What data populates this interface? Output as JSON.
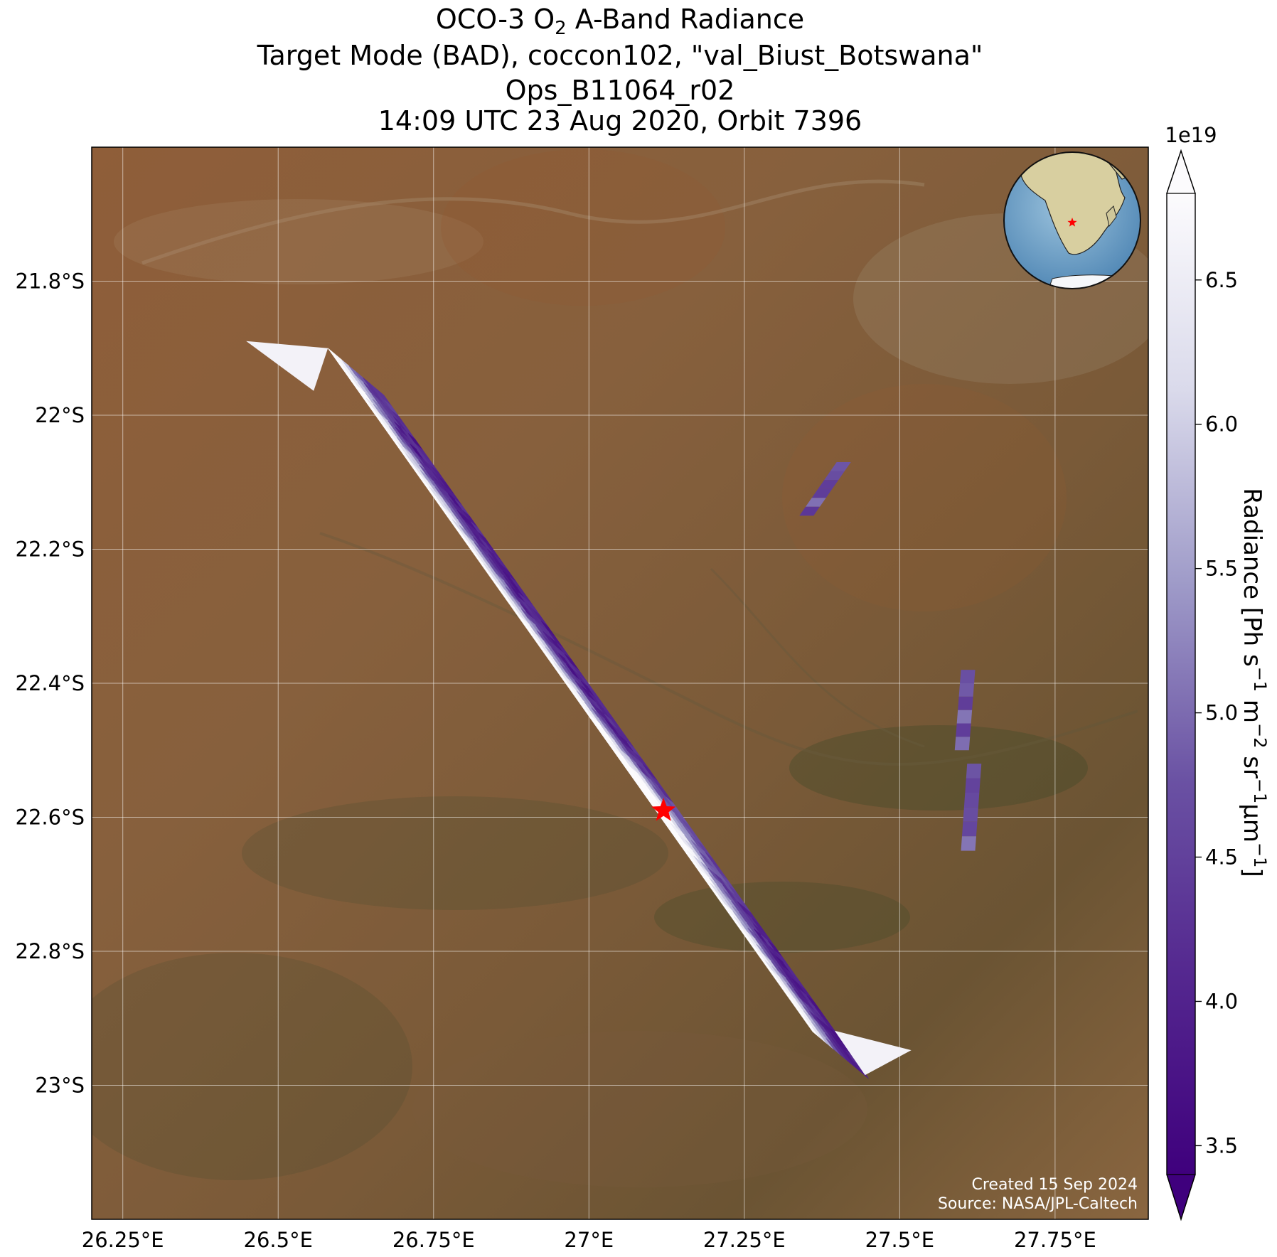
{
  "title": {
    "line1_prefix": "OCO-3 O",
    "line1_sub": "2",
    "line1_suffix": " A-Band Radiance",
    "line2": "Target Mode (BAD), coccon102, \"val_Biust_Botswana\"",
    "line3": "Ops_B11064_r02",
    "line4": "14:09 UTC 23 Aug 2020, Orbit 7396"
  },
  "map": {
    "lon_range": [
      26.2,
      27.9
    ],
    "lat_range": [
      -23.2,
      -21.6
    ],
    "lon_ticks": [
      26.25,
      26.5,
      26.75,
      27.0,
      27.25,
      27.5,
      27.75
    ],
    "lon_tick_labels": [
      "26.25°E",
      "26.5°E",
      "26.75°E",
      "27°E",
      "27.25°E",
      "27.5°E",
      "27.75°E"
    ],
    "lat_ticks": [
      -21.8,
      -22.0,
      -22.2,
      -22.4,
      -22.6,
      -22.8,
      -23.0
    ],
    "lat_tick_labels": [
      "21.8°S",
      "22°S",
      "22.2°S",
      "22.4°S",
      "22.6°S",
      "22.8°S",
      "23°S"
    ],
    "grid": true,
    "basemap": "satellite-imagery",
    "colors": {
      "terrain": "#8a5a36",
      "terrain_dark": "#4e4a30",
      "terrain_light": "#a87850"
    }
  },
  "target": {
    "lon": 27.12,
    "lat": -22.59,
    "color": "#ff0000",
    "icon": "star-icon"
  },
  "swath": {
    "cmap": "Purples_r",
    "main_corners": [
      [
        26.58,
        -21.9
      ],
      [
        26.67,
        -21.97
      ],
      [
        27.37,
        -22.83
      ],
      [
        27.36,
        -22.92
      ]
    ],
    "fragments": [
      {
        "lon": [
          27.35,
          27.41
        ],
        "lat": [
          -22.07,
          -22.15
        ]
      },
      {
        "lon": [
          27.6,
          27.61
        ],
        "lat": [
          -22.38,
          -22.5
        ]
      },
      {
        "lon": [
          27.61,
          27.62
        ],
        "lat": [
          -22.52,
          -22.65
        ]
      }
    ]
  },
  "colorbar": {
    "vmin": 3.4,
    "vmax": 6.8,
    "ticks": [
      3.5,
      4.0,
      4.5,
      5.0,
      5.5,
      6.0,
      6.5
    ],
    "tick_labels": [
      "3.5",
      "4.0",
      "4.5",
      "5.0",
      "5.5",
      "6.0",
      "6.5"
    ],
    "multiplier": "1e19",
    "label_main": "Radiance [Ph s",
    "label_sup1": "−1",
    "label_m": " m",
    "label_sup2": "−2",
    "label_sr": " sr",
    "label_sup3": "−1",
    "label_um": "μm",
    "label_sup4": "−1",
    "label_end": "]",
    "extend": "both",
    "colors": {
      "low": "#3f007d",
      "mid": "#807dba",
      "high": "#fcfbfd"
    }
  },
  "inset_globe": {
    "icon": "globe-icon",
    "marker_color": "#ff0000",
    "ocean": "#7aa9cf",
    "land": "#d8cfa0"
  },
  "credits": {
    "created": "Created 15 Sep 2024",
    "source": "Source: NASA/JPL-Caltech"
  }
}
